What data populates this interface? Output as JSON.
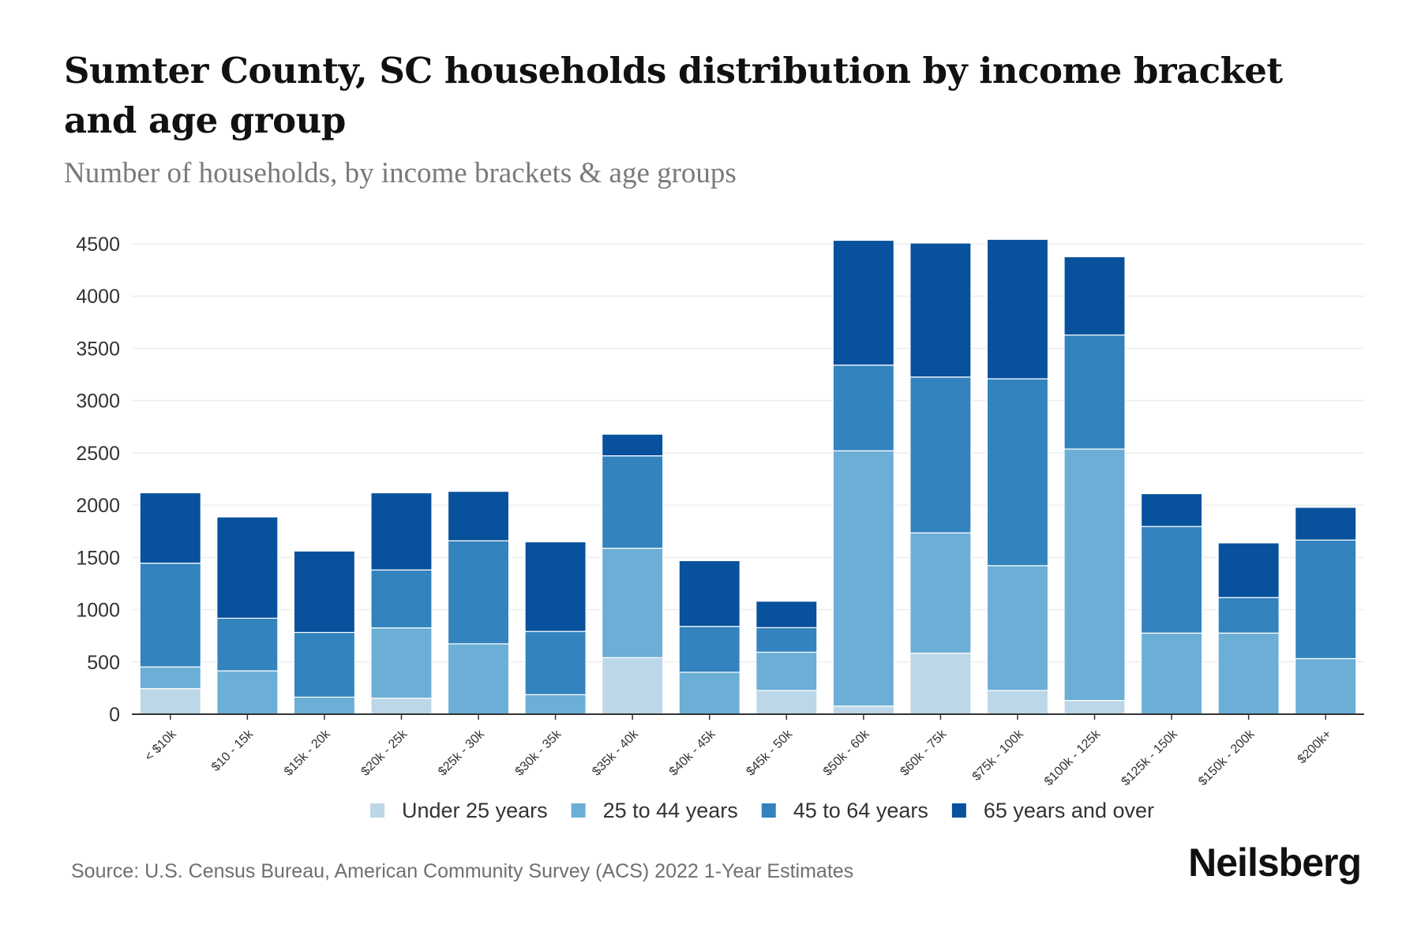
{
  "title": "Sumter County, SC households distribution by income bracket and age group",
  "subtitle": "Number of households, by income brackets & age groups",
  "source": "Source: U.S. Census Bureau, American Community Survey (ACS) 2022 1-Year Estimates",
  "logo": "Neilsberg",
  "chart_data": {
    "type": "bar",
    "stacked": true,
    "title": "Sumter County, SC households distribution by income bracket and age group",
    "subtitle": "Number of households, by income brackets & age groups",
    "xlabel": "",
    "ylabel": "",
    "ylim": [
      0,
      4500
    ],
    "yticks": [
      0,
      500,
      1000,
      1500,
      2000,
      2500,
      3000,
      3500,
      4000,
      4500
    ],
    "grid": true,
    "legend_position": "bottom",
    "categories": [
      "< $10k",
      "$10 - 15k",
      "$15k - 20k",
      "$20k - 25k",
      "$25k - 30k",
      "$30k - 35k",
      "$35k - 40k",
      "$40k - 45k",
      "$45k - 50k",
      "$50k - 60k",
      "$60k - 75k",
      "$75k - 100k",
      "$100k - 125k",
      "$125k - 150k",
      "$150k - 200k",
      "$200k+"
    ],
    "series": [
      {
        "name": "Under 25 years",
        "color": "#bcd7e8",
        "values": [
          245,
          0,
          0,
          153,
          0,
          0,
          541,
          0,
          227,
          78,
          584,
          227,
          131,
          0,
          0,
          0
        ]
      },
      {
        "name": "25 to 44 years",
        "color": "#6baed6",
        "values": [
          207,
          415,
          163,
          673,
          673,
          187,
          1047,
          401,
          366,
          2442,
          1151,
          1194,
          2406,
          776,
          776,
          532
        ]
      },
      {
        "name": "45 to 64 years",
        "color": "#3383be",
        "values": [
          993,
          503,
          619,
          554,
          986,
          605,
          884,
          439,
          235,
          820,
          1491,
          1788,
          1091,
          1020,
          340,
          1134
        ]
      },
      {
        "name": "65 years and over",
        "color": "#08519c",
        "values": [
          673,
          969,
          779,
          738,
          473,
          857,
          207,
          629,
          253,
          1194,
          1282,
          1334,
          749,
          314,
          523,
          313
        ]
      }
    ]
  }
}
